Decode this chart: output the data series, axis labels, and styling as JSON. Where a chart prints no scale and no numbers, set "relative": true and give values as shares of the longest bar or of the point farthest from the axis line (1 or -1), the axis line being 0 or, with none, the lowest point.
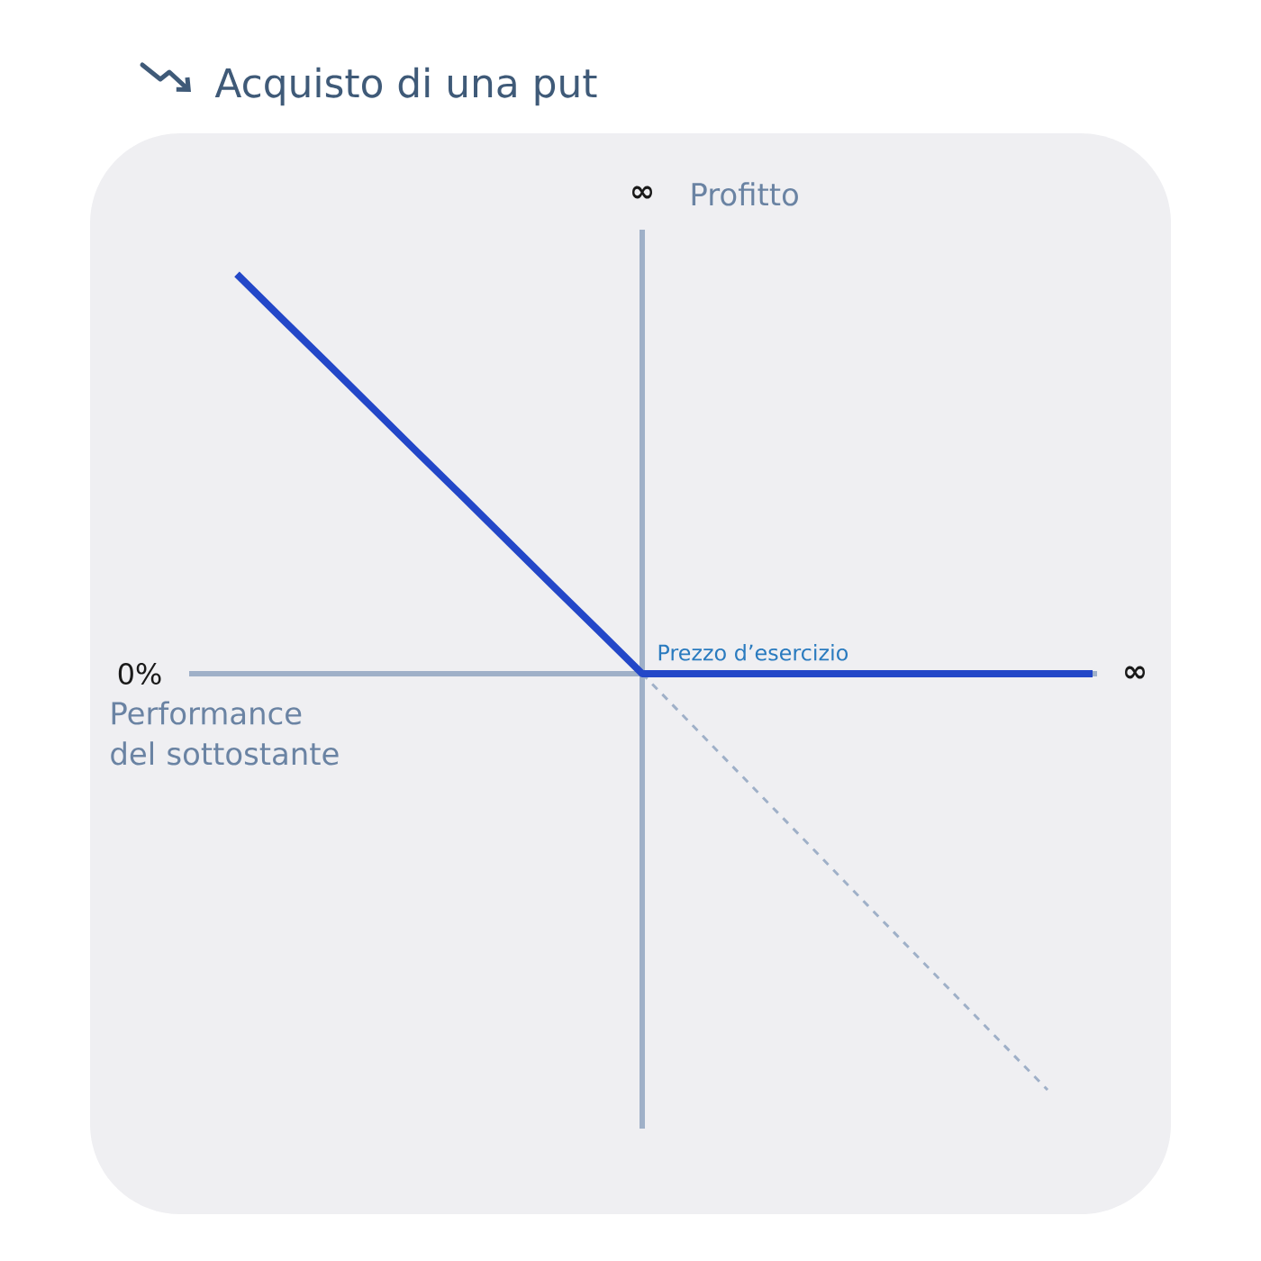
{
  "chart_data": {
    "type": "line",
    "title": "Acquisto di una put",
    "xlabel": "Performance del sottostante",
    "ylabel": "Profitto",
    "relative": true,
    "marker": "none",
    "categories": [
      null,
      null,
      null,
      null,
      null,
      null,
      null,
      null,
      null,
      null,
      null,
      null,
      null,
      null,
      null,
      null,
      null,
      null,
      null,
      null
    ],
    "series": [
      {
        "color": "#9fb0c8",
        "line_style": "dashed",
        "values": [
          null,
          null,
          null,
          null,
          null,
          null,
          null,
          null,
          null,
          0,
          -0.111,
          -0.222,
          -0.333,
          -0.444,
          -0.556,
          -0.667,
          -0.778,
          -0.889,
          -1,
          null
        ]
      },
      {
        "color": "#2347c8",
        "line_style": "solid",
        "values": [
          0.96,
          0.853,
          0.747,
          0.64,
          0.533,
          0.427,
          0.32,
          0.213,
          0.107,
          0,
          0,
          0,
          0,
          0,
          0,
          0,
          0,
          0,
          0,
          0
        ]
      }
    ],
    "ref_lines": [
      {
        "axis": "y",
        "value": 0,
        "color": "#9fb0c8"
      }
    ],
    "annotations": [
      "∞",
      "0%",
      "∞",
      "Prezzo d’esercizio"
    ]
  }
}
